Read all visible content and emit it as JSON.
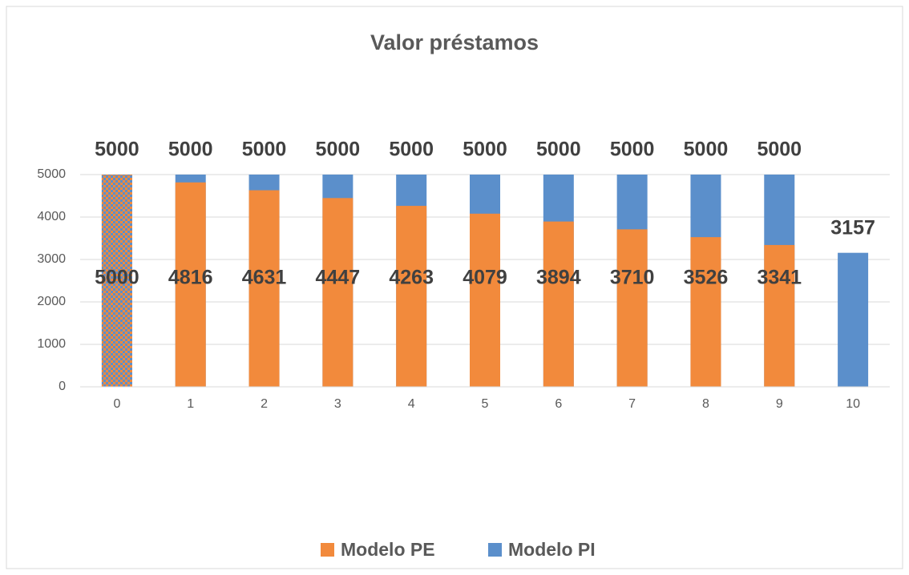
{
  "chart_data": {
    "type": "bar",
    "title": "Valor préstamos",
    "categories": [
      "0",
      "1",
      "2",
      "3",
      "4",
      "5",
      "6",
      "7",
      "8",
      "9",
      "10"
    ],
    "series": [
      {
        "name": "Modelo PE",
        "color": "#f28a3c",
        "values": [
          5000,
          4816,
          4631,
          4447,
          4263,
          4079,
          3894,
          3710,
          3526,
          3341,
          null
        ]
      },
      {
        "name": "Modelo PI",
        "color": "#5b8fcb",
        "values": [
          5000,
          5000,
          5000,
          5000,
          5000,
          5000,
          5000,
          5000,
          5000,
          5000,
          3157
        ]
      }
    ],
    "ylim": [
      0,
      5000
    ],
    "yticks": [
      0,
      1000,
      2000,
      3000,
      4000,
      5000
    ],
    "grid": true,
    "legend": "bottom"
  }
}
